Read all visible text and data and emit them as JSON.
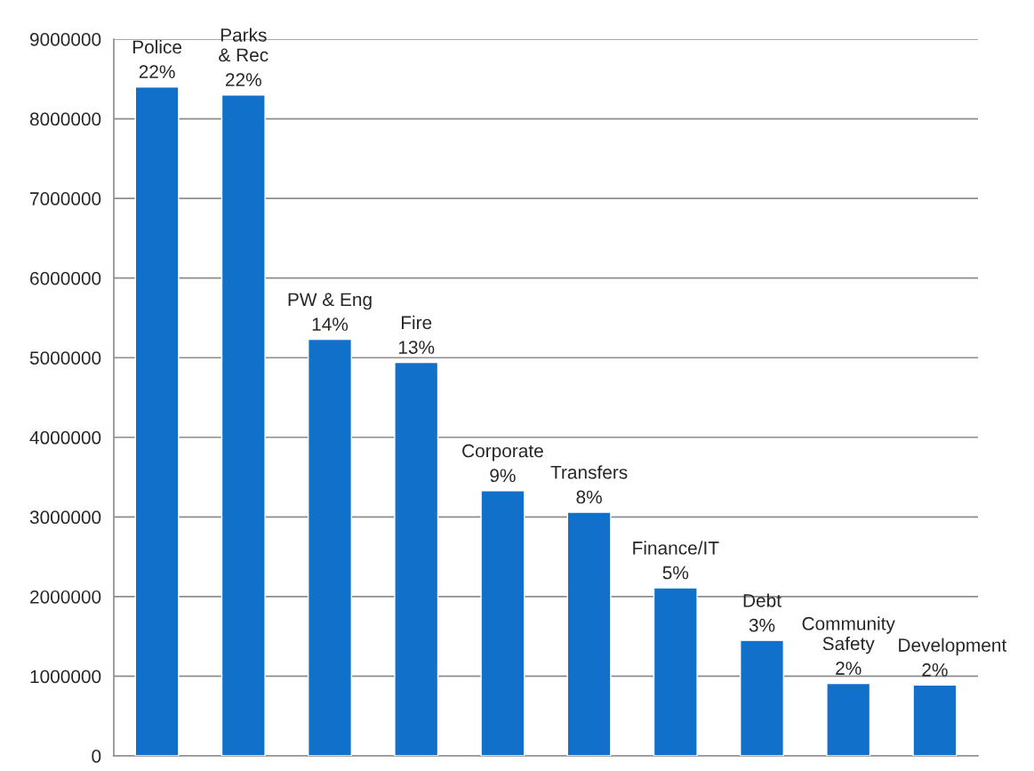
{
  "chart_data": {
    "type": "bar",
    "categories": [
      "Police",
      "Parks\n& Rec",
      "PW & Eng",
      "Fire",
      "Corporate",
      "Transfers",
      "Finance/IT",
      "Debt",
      "Community\nSafety",
      "Development"
    ],
    "values": [
      8400000,
      8300000,
      5230000,
      4940000,
      3330000,
      3060000,
      2110000,
      1450000,
      910000,
      890000
    ],
    "annotations": [
      {
        "text": "22%",
        "x": "Police",
        "y": 8400000
      },
      {
        "text": "22%",
        "x": "Parks\n& Rec",
        "y": 8300000
      },
      {
        "text": "14%",
        "x": "PW & Eng",
        "y": 5230000
      },
      {
        "text": "13%",
        "x": "Fire",
        "y": 4940000
      },
      {
        "text": "9%",
        "x": "Corporate",
        "y": 3330000
      },
      {
        "text": "8%",
        "x": "Transfers",
        "y": 3060000
      },
      {
        "text": "5%",
        "x": "Finance/IT",
        "y": 2110000
      },
      {
        "text": "3%",
        "x": "Debt",
        "y": 1450000
      },
      {
        "text": "2%",
        "x": "Community\nSafety",
        "y": 910000
      },
      {
        "text": "2%",
        "x": "Development",
        "y": 890000
      }
    ],
    "color": "#1170c9",
    "ylim": [
      0,
      9000000
    ],
    "yticks": [
      0,
      1000000,
      2000000,
      3000000,
      4000000,
      5000000,
      6000000,
      7000000,
      8000000,
      9000000
    ],
    "grid": "y"
  }
}
